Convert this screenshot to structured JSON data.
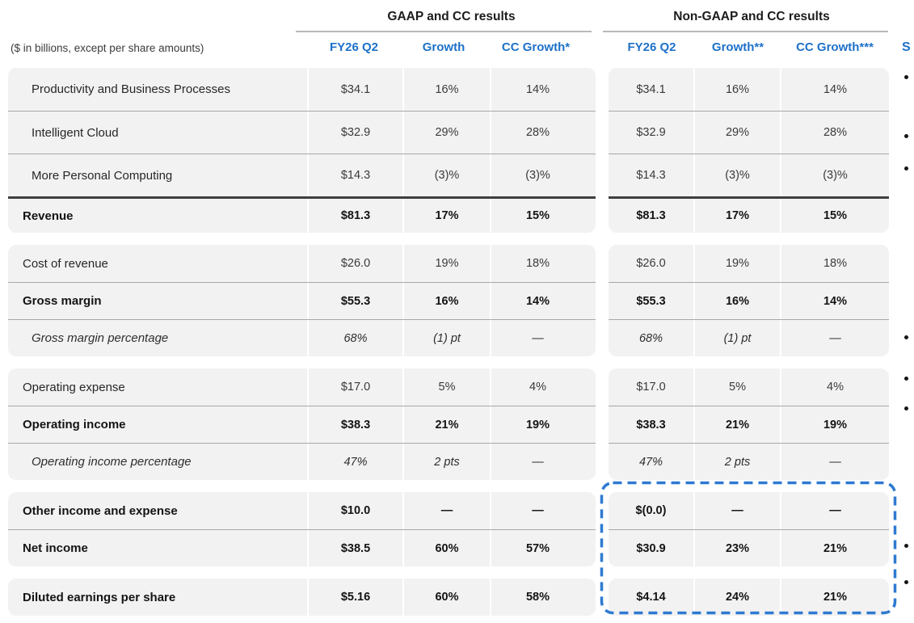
{
  "note": "($ in billions, except per share amounts)",
  "column_groups": [
    {
      "title": "GAAP and CC results",
      "columns": [
        "FY26 Q2",
        "Growth",
        "CC Growth*"
      ]
    },
    {
      "title": "Non-GAAP and CC results",
      "columns": [
        "FY26 Q2",
        "Growth**",
        "CC Growth***"
      ]
    }
  ],
  "blocks": [
    {
      "rows": [
        {
          "label": "Productivity and Business Processes",
          "style": "indent",
          "gaap": [
            "$34.1",
            "16%",
            "14%"
          ],
          "non_gaap": [
            "$34.1",
            "16%",
            "14%"
          ]
        },
        {
          "label": "Intelligent Cloud",
          "style": "indent",
          "gaap": [
            "$32.9",
            "29%",
            "28%"
          ],
          "non_gaap": [
            "$32.9",
            "29%",
            "28%"
          ]
        },
        {
          "label": "More Personal Computing",
          "style": "indent",
          "gaap": [
            "$14.3",
            "(3)%",
            "(3)%"
          ],
          "non_gaap": [
            "$14.3",
            "(3)%",
            "(3)%"
          ]
        },
        {
          "label": "Revenue",
          "style": "bold",
          "divider": "thick",
          "gaap": [
            "$81.3",
            "17%",
            "15%"
          ],
          "non_gaap": [
            "$81.3",
            "17%",
            "15%"
          ]
        }
      ]
    },
    {
      "rows": [
        {
          "label": "Cost of revenue",
          "style": "plain",
          "gaap": [
            "$26.0",
            "19%",
            "18%"
          ],
          "non_gaap": [
            "$26.0",
            "19%",
            "18%"
          ]
        },
        {
          "label": "Gross margin",
          "style": "bold",
          "gaap": [
            "$55.3",
            "16%",
            "14%"
          ],
          "non_gaap": [
            "$55.3",
            "16%",
            "14%"
          ]
        },
        {
          "label": "Gross margin percentage",
          "style": "italic",
          "gaap": [
            "68%",
            "(1) pt",
            "—"
          ],
          "non_gaap": [
            "68%",
            "(1) pt",
            "—"
          ]
        }
      ]
    },
    {
      "rows": [
        {
          "label": "Operating expense",
          "style": "plain",
          "gaap": [
            "$17.0",
            "5%",
            "4%"
          ],
          "non_gaap": [
            "$17.0",
            "5%",
            "4%"
          ]
        },
        {
          "label": "Operating income",
          "style": "bold",
          "gaap": [
            "$38.3",
            "21%",
            "19%"
          ],
          "non_gaap": [
            "$38.3",
            "21%",
            "19%"
          ]
        },
        {
          "label": "Operating income percentage",
          "style": "italic",
          "gaap": [
            "47%",
            "2 pts",
            "—"
          ],
          "non_gaap": [
            "47%",
            "2 pts",
            "—"
          ]
        }
      ]
    },
    {
      "rows": [
        {
          "label": "Other income and expense",
          "style": "bold",
          "gaap": [
            "$10.0",
            "—",
            "—"
          ],
          "non_gaap": [
            "$(0.0)",
            "—",
            "—"
          ]
        },
        {
          "label": "Net income",
          "style": "bold",
          "gaap": [
            "$38.5",
            "60%",
            "57%"
          ],
          "non_gaap": [
            "$30.9",
            "23%",
            "21%"
          ]
        }
      ]
    },
    {
      "rows": [
        {
          "label": "Diluted earnings per share",
          "style": "bold",
          "gaap": [
            "$5.16",
            "60%",
            "58%"
          ],
          "non_gaap": [
            "$4.14",
            "24%",
            "21%"
          ]
        }
      ]
    }
  ],
  "right_edge": {
    "partial_heading": "S",
    "bullet_char": "•",
    "bullet_count": 8
  },
  "colors": {
    "header_blue": "#1e71c8",
    "highlight_blue": "#2e7ad1",
    "row_gray": "#f3f2f2"
  }
}
